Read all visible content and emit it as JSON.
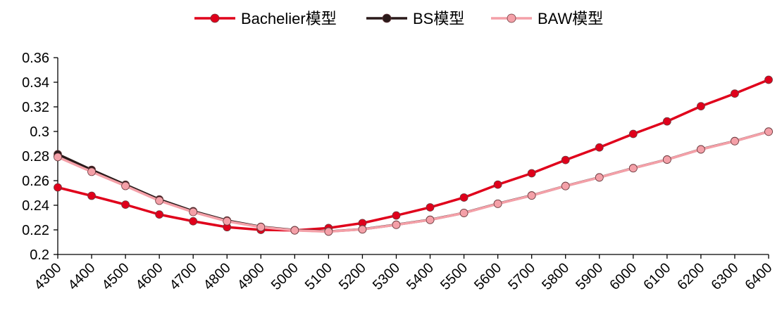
{
  "chart_data": {
    "type": "line",
    "title": "",
    "xlabel": "",
    "ylabel": "",
    "x": [
      4300,
      4400,
      4500,
      4600,
      4700,
      4800,
      4900,
      5000,
      5100,
      5200,
      5300,
      5400,
      5500,
      5600,
      5700,
      5800,
      5900,
      6000,
      6100,
      6200,
      6300,
      6400
    ],
    "x_tick_labels": [
      "4300",
      "4400",
      "4500",
      "4600",
      "4700",
      "4800",
      "4900",
      "5000",
      "5100",
      "5200",
      "5300",
      "5400",
      "5500",
      "5600",
      "5700",
      "5800",
      "5900",
      "6000",
      "6100",
      "6200",
      "6300",
      "6400"
    ],
    "ylim": [
      0.2,
      0.36
    ],
    "y_ticks": [
      0.2,
      0.22,
      0.24,
      0.26,
      0.28,
      0.3,
      0.32,
      0.34,
      0.36
    ],
    "y_tick_labels": [
      "0.2",
      "0.22",
      "0.24",
      "0.26",
      "0.28",
      "0.3",
      "0.32",
      "0.34",
      "0.36"
    ],
    "grid": false,
    "legend_position": "top-center",
    "series": [
      {
        "name": "Bachelier模型",
        "color": "#E0001B",
        "values": [
          0.2545,
          0.2477,
          0.2405,
          0.2325,
          0.227,
          0.2222,
          0.22,
          0.2196,
          0.2215,
          0.2255,
          0.2317,
          0.2383,
          0.2463,
          0.2568,
          0.266,
          0.2768,
          0.287,
          0.298,
          0.3082,
          0.3205,
          0.3308,
          0.342
        ]
      },
      {
        "name": "BS模型",
        "color": "#2A1A1A",
        "values": [
          0.2815,
          0.2688,
          0.2567,
          0.2447,
          0.2352,
          0.2276,
          0.2225,
          0.2198,
          0.2187,
          0.2205,
          0.2242,
          0.2282,
          0.2338,
          0.2413,
          0.248,
          0.2557,
          0.2627,
          0.2702,
          0.2772,
          0.2855,
          0.2922,
          0.2999
        ]
      },
      {
        "name": "BAW模型",
        "color": "#F4A0A8",
        "values": [
          0.2792,
          0.2672,
          0.2557,
          0.2437,
          0.2345,
          0.227,
          0.2222,
          0.2196,
          0.2186,
          0.2204,
          0.2241,
          0.2281,
          0.2337,
          0.2412,
          0.2479,
          0.2556,
          0.2626,
          0.2701,
          0.2771,
          0.2854,
          0.2921,
          0.2998
        ]
      }
    ]
  }
}
